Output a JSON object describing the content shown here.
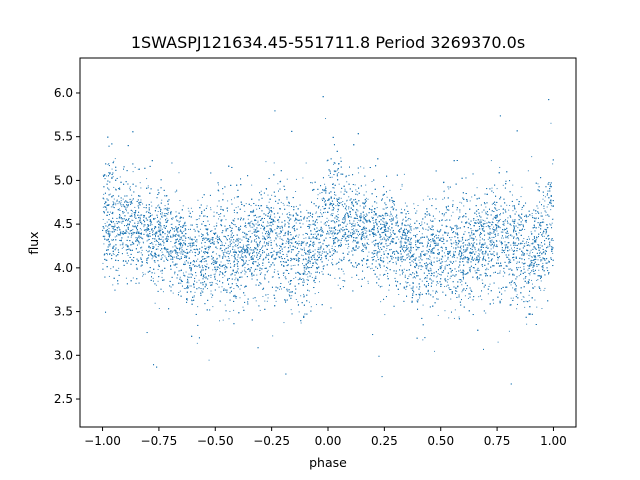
{
  "chart_data": {
    "type": "scatter",
    "title": "1SWASPJ121634.45-551711.8 Period 3269370.0s",
    "xlabel": "phase",
    "ylabel": "flux",
    "xlim": [
      -1.1,
      1.1
    ],
    "ylim": [
      2.18,
      6.4
    ],
    "x_ticks": [
      -1.0,
      -0.75,
      -0.5,
      -0.25,
      0.0,
      0.25,
      0.5,
      0.75,
      1.0
    ],
    "x_tick_labels": [
      "−1.00",
      "−0.75",
      "−0.50",
      "−0.25",
      "0.00",
      "0.25",
      "0.50",
      "0.75",
      "1.00"
    ],
    "y_ticks": [
      2.5,
      3.0,
      3.5,
      4.0,
      4.5,
      5.0,
      5.5,
      6.0
    ],
    "y_tick_labels": [
      "2.5",
      "3.0",
      "3.5",
      "4.0",
      "4.5",
      "5.0",
      "5.5",
      "6.0"
    ],
    "grid": false,
    "marker_color": "#1f77b4",
    "phase_profile": {
      "phase": [
        -1.0,
        -0.95,
        -0.9,
        -0.85,
        -0.8,
        -0.75,
        -0.7,
        -0.65,
        -0.6,
        -0.55,
        -0.5,
        -0.45,
        -0.4,
        -0.35,
        -0.3,
        -0.25,
        -0.2,
        -0.15,
        -0.1,
        -0.05,
        0.0
      ],
      "median_flux": [
        4.6,
        4.55,
        4.5,
        4.45,
        4.4,
        4.35,
        4.3,
        4.2,
        4.1,
        4.15,
        4.2,
        4.15,
        4.2,
        4.25,
        4.3,
        4.35,
        4.3,
        4.2,
        4.1,
        4.3,
        4.6
      ],
      "spread": [
        0.3,
        0.35,
        0.32,
        0.3,
        0.3,
        0.3,
        0.28,
        0.26,
        0.26,
        0.26,
        0.3,
        0.32,
        0.3,
        0.28,
        0.3,
        0.3,
        0.35,
        0.35,
        0.3,
        0.32,
        0.3
      ]
    },
    "approx_point_count": 14000
  }
}
